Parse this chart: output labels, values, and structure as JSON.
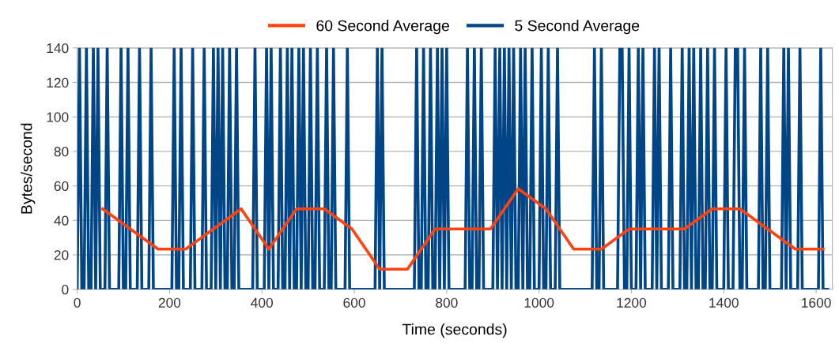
{
  "chart_data": {
    "type": "line",
    "xlabel": "Time (seconds)",
    "ylabel": "Bytes/second",
    "xlim": [
      0,
      1635
    ],
    "xticks": [
      0,
      200,
      400,
      600,
      800,
      1000,
      1200,
      1400,
      1600
    ],
    "ylim": [
      0,
      140
    ],
    "yticks": [
      0,
      20,
      40,
      60,
      80,
      100,
      120,
      140
    ],
    "grid": "y",
    "legend": "top",
    "line_style": "solid",
    "marker": "none",
    "series": [
      {
        "name": "60 Second Average",
        "color": "#ff420e",
        "x": [
          55,
          115,
          175,
          235,
          295,
          355,
          415,
          475,
          535,
          595,
          655,
          715,
          775,
          835,
          895,
          955,
          1015,
          1075,
          1135,
          1195,
          1255,
          1315,
          1375,
          1435,
          1495,
          1555,
          1615
        ],
        "values": [
          46.67,
          35,
          23.33,
          23.33,
          35,
          46.67,
          23.33,
          46.67,
          46.67,
          35,
          11.67,
          11.67,
          35,
          35,
          35,
          58.33,
          46.67,
          23.33,
          23.33,
          35,
          35,
          35,
          46.67,
          46.67,
          35,
          23.33,
          23.33
        ]
      },
      {
        "name": "5 Second Average",
        "color": "#004586",
        "x": [
          0,
          5,
          10,
          15,
          20,
          25,
          30,
          35,
          40,
          45,
          50,
          60,
          65,
          70,
          90,
          95,
          100,
          105,
          110,
          115,
          130,
          135,
          140,
          155,
          160,
          165,
          205,
          210,
          215,
          220,
          225,
          230,
          245,
          250,
          255,
          270,
          275,
          280,
          290,
          295,
          300,
          305,
          310,
          315,
          320,
          325,
          330,
          335,
          340,
          345,
          350,
          380,
          385,
          390,
          405,
          410,
          415,
          420,
          425,
          435,
          440,
          445,
          450,
          455,
          460,
          465,
          470,
          475,
          480,
          485,
          490,
          495,
          500,
          505,
          510,
          515,
          520,
          525,
          535,
          540,
          545,
          550,
          555,
          560,
          580,
          585,
          590,
          645,
          650,
          655,
          660,
          665,
          730,
          735,
          740,
          745,
          750,
          755,
          760,
          765,
          770,
          775,
          780,
          785,
          790,
          795,
          800,
          805,
          840,
          845,
          850,
          855,
          860,
          865,
          870,
          875,
          880,
          900,
          905,
          910,
          915,
          920,
          925,
          930,
          935,
          940,
          945,
          950,
          955,
          960,
          965,
          970,
          975,
          980,
          985,
          990,
          1000,
          1005,
          1010,
          1015,
          1020,
          1025,
          1035,
          1040,
          1045,
          1115,
          1120,
          1125,
          1130,
          1135,
          1140,
          1170,
          1175,
          1180,
          1185,
          1190,
          1195,
          1200,
          1210,
          1215,
          1220,
          1225,
          1230,
          1245,
          1250,
          1255,
          1260,
          1265,
          1280,
          1285,
          1290,
          1305,
          1310,
          1315,
          1320,
          1325,
          1330,
          1335,
          1340,
          1345,
          1350,
          1355,
          1360,
          1365,
          1370,
          1375,
          1380,
          1385,
          1400,
          1405,
          1410,
          1420,
          1425,
          1430,
          1435,
          1440,
          1445,
          1450,
          1475,
          1480,
          1485,
          1490,
          1495,
          1500,
          1525,
          1530,
          1535,
          1540,
          1545,
          1560,
          1565,
          1570,
          1605,
          1610,
          1615,
          1625
        ],
        "values": [
          0,
          140,
          0,
          0,
          140,
          0,
          0,
          140,
          0,
          140,
          0,
          0,
          140,
          0,
          0,
          140,
          0,
          0,
          140,
          0,
          0,
          140,
          0,
          0,
          140,
          0,
          0,
          140,
          0,
          0,
          140,
          0,
          0,
          140,
          0,
          0,
          140,
          0,
          0,
          140,
          0,
          140,
          0,
          140,
          0,
          0,
          140,
          0,
          0,
          140,
          0,
          0,
          140,
          0,
          0,
          140,
          0,
          140,
          0,
          0,
          140,
          0,
          0,
          140,
          0,
          140,
          0,
          0,
          140,
          0,
          140,
          0,
          0,
          140,
          0,
          0,
          140,
          0,
          0,
          140,
          0,
          0,
          140,
          0,
          0,
          140,
          0,
          0,
          140,
          0,
          140,
          0,
          0,
          140,
          0,
          0,
          140,
          0,
          0,
          140,
          0,
          0,
          140,
          0,
          140,
          0,
          140,
          0,
          0,
          140,
          0,
          0,
          140,
          0,
          0,
          140,
          0,
          0,
          140,
          0,
          140,
          0,
          140,
          0,
          140,
          0,
          140,
          0,
          0,
          140,
          0,
          140,
          0,
          0,
          140,
          0,
          0,
          140,
          0,
          0,
          140,
          0,
          0,
          140,
          0,
          0,
          140,
          0,
          0,
          140,
          0,
          0,
          140,
          140,
          0,
          0,
          140,
          0,
          0,
          140,
          0,
          140,
          0,
          0,
          140,
          0,
          140,
          0,
          0,
          140,
          0,
          0,
          140,
          0,
          0,
          140,
          0,
          140,
          0,
          0,
          140,
          0,
          0,
          140,
          0,
          0,
          140,
          0,
          0,
          140,
          0,
          0,
          140,
          140,
          0,
          0,
          140,
          0,
          0,
          140,
          0,
          0,
          140,
          0,
          0,
          140,
          0,
          140,
          0,
          0,
          140,
          0,
          0,
          140,
          0,
          0
        ]
      }
    ]
  }
}
